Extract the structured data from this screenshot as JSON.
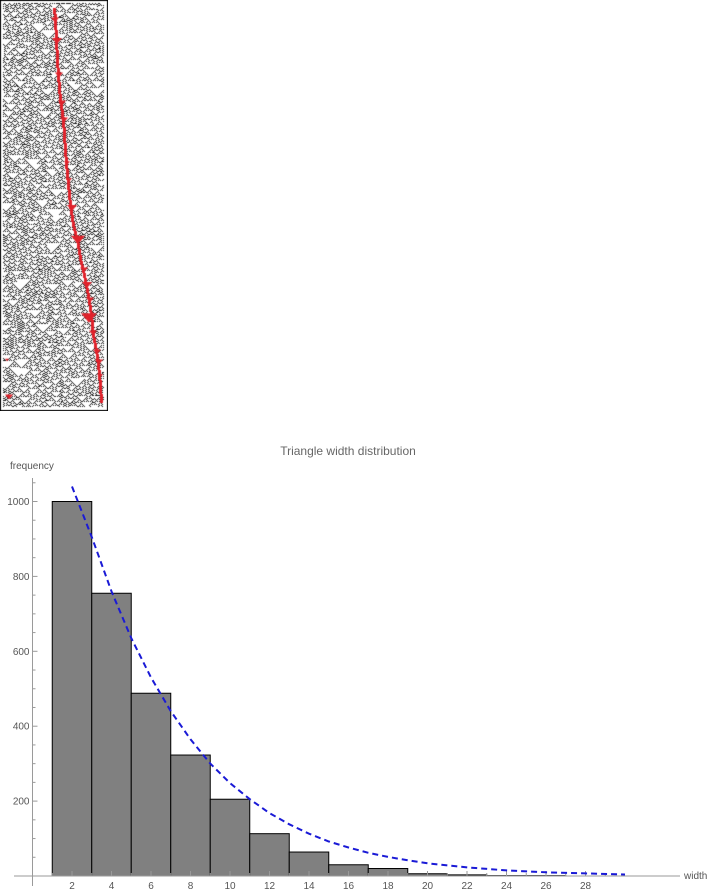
{
  "ca_image": {
    "description_label": "",
    "track_color": "#e0222b",
    "cell_color": "#1a1a1a"
  },
  "chart_data": {
    "type": "bar",
    "title": "Triangle width distribution",
    "xlabel": "width",
    "ylabel": "frequency",
    "bin_width": 2,
    "bins": [
      {
        "x0": 1,
        "x1": 3,
        "value": 1000
      },
      {
        "x0": 3,
        "x1": 5,
        "value": 755
      },
      {
        "x0": 5,
        "x1": 7,
        "value": 488
      },
      {
        "x0": 7,
        "x1": 9,
        "value": 323
      },
      {
        "x0": 9,
        "x1": 11,
        "value": 205
      },
      {
        "x0": 11,
        "x1": 13,
        "value": 113
      },
      {
        "x0": 13,
        "x1": 15,
        "value": 64
      },
      {
        "x0": 15,
        "x1": 17,
        "value": 30
      },
      {
        "x0": 17,
        "x1": 19,
        "value": 20
      },
      {
        "x0": 19,
        "x1": 21,
        "value": 6
      },
      {
        "x0": 21,
        "x1": 23,
        "value": 3
      },
      {
        "x0": 23,
        "x1": 25,
        "value": 1
      },
      {
        "x0": 25,
        "x1": 27,
        "value": 1
      },
      {
        "x0": 27,
        "x1": 29,
        "value": 0
      }
    ],
    "fit_curve": {
      "style": "dashed",
      "color": "#1a1ad6",
      "points": [
        [
          2,
          1040
        ],
        [
          3,
          905
        ],
        [
          4,
          760
        ],
        [
          5,
          635
        ],
        [
          6,
          530
        ],
        [
          7,
          440
        ],
        [
          8,
          365
        ],
        [
          9,
          300
        ],
        [
          10,
          248
        ],
        [
          11,
          205
        ],
        [
          12,
          168
        ],
        [
          13,
          138
        ],
        [
          14,
          113
        ],
        [
          15,
          92
        ],
        [
          16,
          76
        ],
        [
          17,
          62
        ],
        [
          18,
          51
        ],
        [
          19,
          42
        ],
        [
          20,
          34
        ],
        [
          22,
          23
        ],
        [
          24,
          15
        ],
        [
          26,
          10
        ],
        [
          28,
          7
        ],
        [
          30,
          4
        ]
      ]
    },
    "x_ticks": [
      2,
      4,
      6,
      8,
      10,
      12,
      14,
      16,
      18,
      20,
      22,
      24,
      26,
      28
    ],
    "x_tick_labels": [
      "2",
      "4",
      "6",
      "8",
      "10",
      "12",
      "14",
      "16",
      "18",
      "20",
      "22",
      "24",
      "26",
      "28"
    ],
    "y_ticks": [
      200,
      400,
      600,
      800,
      1000
    ],
    "y_tick_labels": [
      "200",
      "400",
      "600",
      "800",
      "1000"
    ],
    "xlim": [
      0,
      30.5
    ],
    "ylim": [
      0,
      1060
    ],
    "bar_color": "#808080",
    "bar_edge_color": "#000000",
    "grid": false
  }
}
